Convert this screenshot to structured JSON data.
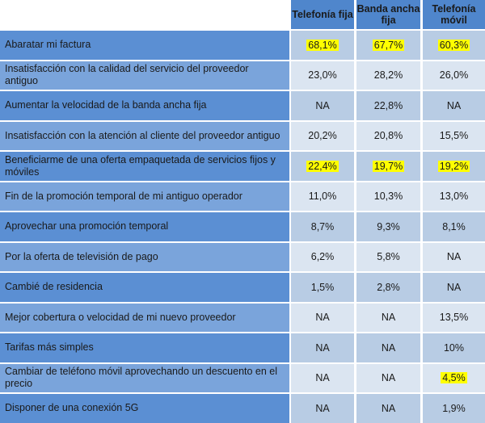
{
  "table": {
    "columns": [
      "Telefonía fija",
      "Banda ancha fija",
      "Telefonía móvil"
    ],
    "rows": [
      {
        "label": "Abaratar mi factura",
        "values": [
          "68,1%",
          "67,7%",
          "60,3%"
        ],
        "highlight": [
          true,
          true,
          true
        ]
      },
      {
        "label": "Insatisfacción con la calidad del servicio del proveedor antiguo",
        "values": [
          "23,0%",
          "28,2%",
          "26,0%"
        ],
        "highlight": [
          false,
          false,
          false
        ]
      },
      {
        "label": "Aumentar la velocidad de la banda ancha fija",
        "values": [
          "NA",
          "22,8%",
          "NA"
        ],
        "highlight": [
          false,
          false,
          false
        ]
      },
      {
        "label": "Insatisfacción con la atención al cliente del proveedor antiguo",
        "values": [
          "20,2%",
          "20,8%",
          "15,5%"
        ],
        "highlight": [
          false,
          false,
          false
        ]
      },
      {
        "label": "Beneficiarme de una oferta empaquetada de servicios fijos y móviles",
        "values": [
          "22,4%",
          "19,7%",
          "19,2%"
        ],
        "highlight": [
          true,
          true,
          true
        ]
      },
      {
        "label": "Fin de la promoción temporal de mi antiguo operador",
        "values": [
          "11,0%",
          "10,3%",
          "13,0%"
        ],
        "highlight": [
          false,
          false,
          false
        ]
      },
      {
        "label": "Aprovechar una promoción temporal",
        "values": [
          "8,7%",
          "9,3%",
          "8,1%"
        ],
        "highlight": [
          false,
          false,
          false
        ]
      },
      {
        "label": "Por la oferta de televisión de pago",
        "values": [
          "6,2%",
          "5,8%",
          "NA"
        ],
        "highlight": [
          false,
          false,
          false
        ]
      },
      {
        "label": "Cambié de residencia",
        "values": [
          "1,5%",
          "2,8%",
          "NA"
        ],
        "highlight": [
          false,
          false,
          false
        ]
      },
      {
        "label": "Mejor cobertura o velocidad de mi nuevo proveedor",
        "values": [
          "NA",
          "NA",
          "13,5%"
        ],
        "highlight": [
          false,
          false,
          false
        ]
      },
      {
        "label": "Tarifas más simples",
        "values": [
          "NA",
          "NA",
          "10%"
        ],
        "highlight": [
          false,
          false,
          false
        ]
      },
      {
        "label": "Cambiar de teléfono móvil aprovechando un descuento en el precio",
        "values": [
          "NA",
          "NA",
          "4,5%"
        ],
        "highlight": [
          false,
          false,
          true
        ]
      },
      {
        "label": "Disponer de una conexión 5G",
        "values": [
          "NA",
          "NA",
          "1,9%"
        ],
        "highlight": [
          false,
          false,
          false
        ]
      }
    ]
  }
}
